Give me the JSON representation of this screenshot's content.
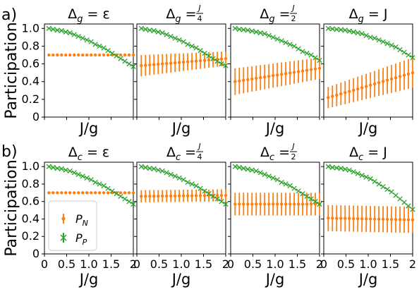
{
  "panel_letters": [
    "a)",
    "b)"
  ],
  "ylabel": "Participation",
  "xlabel": "J/g",
  "yticks": [
    "0",
    "0.2",
    "0.4",
    "0.6",
    "0.8",
    "1.0"
  ],
  "xticks": [
    "0",
    "0.5",
    "1.0",
    "1.5",
    "2"
  ],
  "legend": {
    "n_label": "P",
    "n_sub": "N",
    "p_label": "P",
    "p_sub": "P"
  },
  "colors": {
    "pn": "#ff7f0e",
    "pp": "#2ca02c"
  },
  "chart_data": [
    {
      "type": "scatter",
      "row": "a",
      "title_sym": "Δ",
      "title_sub": "g",
      "title_rhs": "ε",
      "xlim": [
        0,
        2
      ],
      "ylim": [
        0,
        1.05
      ],
      "pn_mean": [
        0.7,
        0.7
      ],
      "pn_err": [
        0.0,
        0.0
      ],
      "pp": [
        1.0,
        0.99,
        0.98,
        0.975,
        0.96,
        0.95,
        0.93,
        0.91,
        0.89,
        0.87,
        0.85,
        0.82,
        0.8,
        0.78,
        0.75,
        0.72,
        0.69,
        0.66,
        0.63,
        0.6,
        0.57
      ]
    },
    {
      "type": "scatter",
      "row": "a",
      "title_sym": "Δ",
      "title_sub": "g",
      "title_rhs_num": "J",
      "title_rhs_den": "4",
      "xlim": [
        0,
        2
      ],
      "ylim": [
        0,
        1.05
      ],
      "pn_mean": [
        0.58,
        0.66
      ],
      "pn_err": [
        0.12,
        0.08
      ],
      "pp": [
        1.0,
        0.99,
        0.98,
        0.975,
        0.96,
        0.95,
        0.93,
        0.91,
        0.89,
        0.87,
        0.85,
        0.82,
        0.8,
        0.78,
        0.75,
        0.72,
        0.69,
        0.66,
        0.63,
        0.6,
        0.58
      ]
    },
    {
      "type": "scatter",
      "row": "a",
      "title_sym": "Δ",
      "title_sub": "g",
      "title_rhs_num": "J",
      "title_rhs_den": "2",
      "xlim": [
        0,
        2
      ],
      "ylim": [
        0,
        1.05
      ],
      "pn_mean": [
        0.4,
        0.55
      ],
      "pn_err": [
        0.15,
        0.12
      ],
      "pp": [
        1.0,
        0.99,
        0.985,
        0.98,
        0.97,
        0.96,
        0.95,
        0.94,
        0.92,
        0.9,
        0.88,
        0.86,
        0.84,
        0.82,
        0.8,
        0.77,
        0.74,
        0.72,
        0.7,
        0.67,
        0.64
      ]
    },
    {
      "type": "scatter",
      "row": "a",
      "title_sym": "Δ",
      "title_sub": "g",
      "title_rhs": "J",
      "xlim": [
        0,
        2
      ],
      "ylim": [
        0,
        1.05
      ],
      "pn_mean": [
        0.22,
        0.5
      ],
      "pn_err": [
        0.12,
        0.17
      ],
      "pp": [
        1.0,
        0.995,
        0.99,
        0.985,
        0.98,
        0.97,
        0.96,
        0.95,
        0.94,
        0.92,
        0.9,
        0.89,
        0.87,
        0.85,
        0.83,
        0.81,
        0.79,
        0.76,
        0.73,
        0.7,
        0.67
      ]
    },
    {
      "type": "scatter",
      "row": "b",
      "title_sym": "Δ",
      "title_sub": "c",
      "title_rhs": "ε",
      "xlim": [
        0,
        2
      ],
      "ylim": [
        0,
        1.05
      ],
      "pn_mean": [
        0.7,
        0.7
      ],
      "pn_err": [
        0.0,
        0.0
      ],
      "pp": [
        1.0,
        0.99,
        0.98,
        0.975,
        0.96,
        0.95,
        0.93,
        0.91,
        0.89,
        0.87,
        0.85,
        0.82,
        0.8,
        0.78,
        0.75,
        0.72,
        0.69,
        0.66,
        0.63,
        0.6,
        0.57
      ]
    },
    {
      "type": "scatter",
      "row": "b",
      "title_sym": "Δ",
      "title_sub": "c",
      "title_rhs_num": "J",
      "title_rhs_den": "4",
      "xlim": [
        0,
        2
      ],
      "ylim": [
        0,
        1.05
      ],
      "pn_mean": [
        0.66,
        0.67
      ],
      "pn_err": [
        0.07,
        0.07
      ],
      "pp": [
        1.0,
        0.99,
        0.98,
        0.975,
        0.96,
        0.95,
        0.93,
        0.91,
        0.89,
        0.87,
        0.85,
        0.82,
        0.8,
        0.78,
        0.75,
        0.72,
        0.69,
        0.66,
        0.63,
        0.6,
        0.57
      ]
    },
    {
      "type": "scatter",
      "row": "b",
      "title_sym": "Δ",
      "title_sub": "c",
      "title_rhs_num": "J",
      "title_rhs_den": "2",
      "xlim": [
        0,
        2
      ],
      "ylim": [
        0,
        1.05
      ],
      "pn_mean": [
        0.57,
        0.57
      ],
      "pn_err": [
        0.13,
        0.13
      ],
      "pp": [
        1.0,
        0.99,
        0.98,
        0.97,
        0.96,
        0.95,
        0.93,
        0.91,
        0.89,
        0.87,
        0.85,
        0.82,
        0.8,
        0.78,
        0.75,
        0.72,
        0.69,
        0.66,
        0.63,
        0.6,
        0.57
      ]
    },
    {
      "type": "scatter",
      "row": "b",
      "title_sym": "Δ",
      "title_sub": "c",
      "title_rhs": "J",
      "xlim": [
        0,
        2
      ],
      "ylim": [
        0,
        1.05
      ],
      "pn_mean": [
        0.41,
        0.39
      ],
      "pn_err": [
        0.15,
        0.15
      ],
      "pp": [
        1.0,
        0.99,
        0.985,
        0.98,
        0.97,
        0.96,
        0.94,
        0.92,
        0.9,
        0.88,
        0.86,
        0.83,
        0.8,
        0.77,
        0.74,
        0.71,
        0.67,
        0.63,
        0.59,
        0.55,
        0.51
      ]
    }
  ]
}
